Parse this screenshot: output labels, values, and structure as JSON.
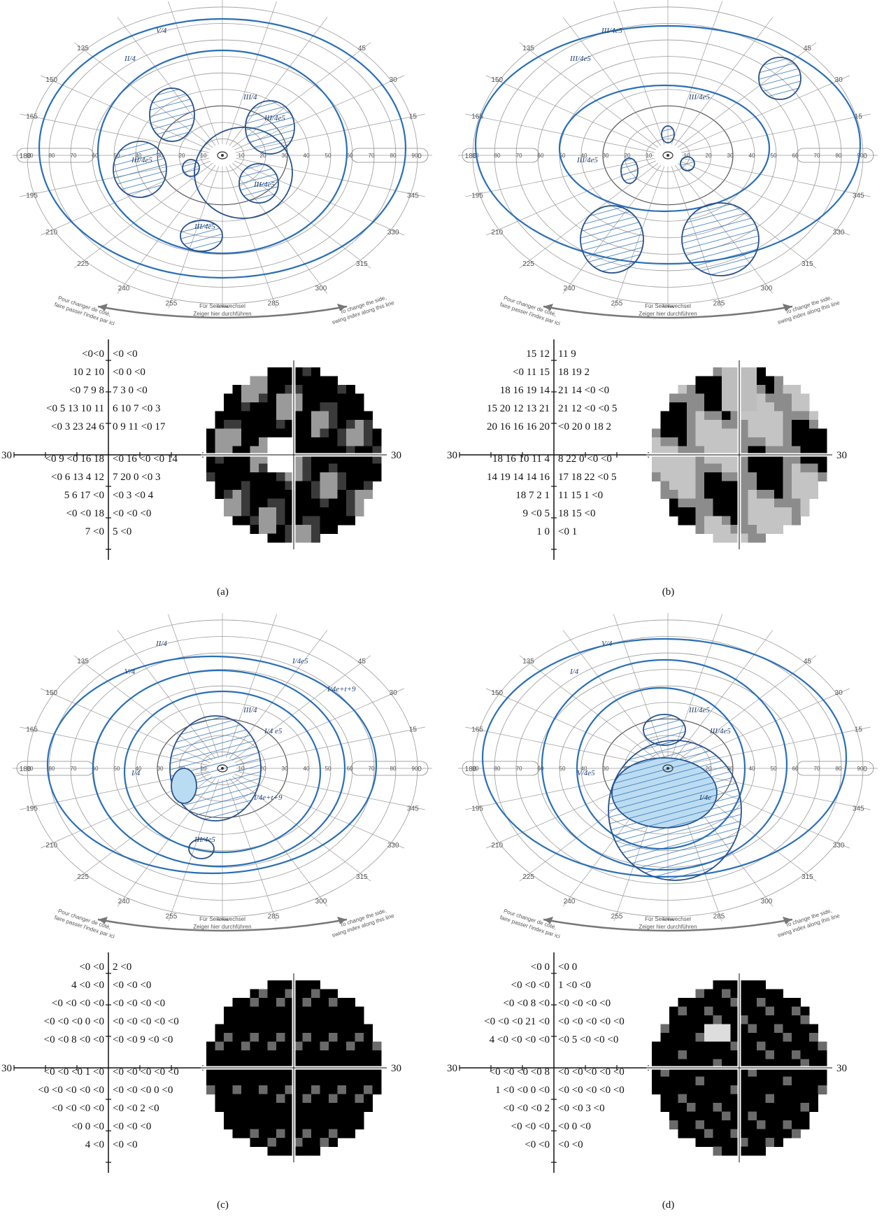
{
  "perimetry_labels": {
    "degrees": [
      "135",
      "150",
      "165",
      "180",
      "195",
      "210",
      "225",
      "240",
      "255",
      "270",
      "285",
      "300",
      "315",
      "330",
      "345",
      "0",
      "15",
      "30",
      "45"
    ],
    "eccentricity": [
      "10",
      "20",
      "30",
      "40",
      "50",
      "60",
      "70",
      "80",
      "90"
    ],
    "bottom_center": [
      "Für Seitenwechsel",
      "Zeiger hier durchführen"
    ],
    "bottom_left": [
      "Pour changer de côté,",
      "faire passer l'index par ici"
    ],
    "bottom_right": [
      "To change the side,",
      "swing index along this line"
    ]
  },
  "panels": [
    {
      "caption": "(a)",
      "isopters": [
        "V/4",
        "II/4",
        "III/4",
        "III/4e5",
        "III/4e5",
        "III/4e5",
        "III/4e5"
      ],
      "grid_left_label": "30",
      "grid_right_label": "30",
      "grid_rows": [
        [
          "<0<0",
          "<0 <0"
        ],
        [
          "10  2 10",
          "<0  0 <0"
        ],
        [
          "<0  7   9   8",
          "7   3   0 <0"
        ],
        [
          "<0  5  13  10 11",
          "6  10  7 <0  3"
        ],
        [
          "<0  3  23  24  6",
          "0   9  11 <0 17"
        ],
        [
          "<0  9 <0  16 18",
          "<0 16 <0 <0 14"
        ],
        [
          "<0  6  13   4 12",
          "7  20  0 <0  3"
        ],
        [
          "5   6  17 <0",
          "<0  3 <0  4"
        ],
        [
          "<0 <0 18",
          "<0 <0 <0"
        ],
        [
          "7 <0",
          "5 <0"
        ]
      ]
    },
    {
      "caption": "(b)",
      "isopters": [
        "III/4e5",
        "III/4e5",
        "III/4e5",
        "III/4e5"
      ],
      "grid_left_label": "30",
      "grid_right_label": "30",
      "grid_rows": [
        [
          "15 12",
          "11  9"
        ],
        [
          "<0 11 15",
          "18 19  2"
        ],
        [
          "18 16 19 14",
          "21 14 <0 <0"
        ],
        [
          "15 20 12 13 21",
          "21 12 <0 <0  5"
        ],
        [
          "20 16 16 16 20",
          "<0 20  0  18  2"
        ],
        [
          "18 16 10 11  4",
          "8  22  0  <0 <0"
        ],
        [
          "14 19 14 14 16",
          "17 18 22 <0  5"
        ],
        [
          "18  7   2   1",
          "11 15  1 <0"
        ],
        [
          "9 <0  5",
          "18 15 <0"
        ],
        [
          "1   0",
          "<0  1"
        ]
      ]
    },
    {
      "caption": "(c)",
      "isopters": [
        "II/4",
        "V/4",
        "III/4",
        "I/4",
        "I/4 e5",
        "I/4e+t+9",
        "III/4e5",
        "I/4e5",
        "I/4e+t+9"
      ],
      "grid_left_label": "30",
      "grid_right_label": "30",
      "grid_rows": [
        [
          "<0 <0",
          "2 <0"
        ],
        [
          "4 <0 <0",
          "<0 <0 <0"
        ],
        [
          "<0 <0 <0 <0",
          "<0 <0 <0 <0"
        ],
        [
          "<0 <0 <0  0 <0",
          "<0 <0 <0 <0 <0"
        ],
        [
          "<0 <0  8 <0 <0",
          "<0 <0  9 <0 <0"
        ],
        [
          "<0 <0 <0  1 <0",
          "<0 <0 <0 <0 <0"
        ],
        [
          "<0 <0 <0 <0 <0",
          "<0 <0 <0  0 <0"
        ],
        [
          "<0 <0 <0 <0",
          "<0 <0  2 <0"
        ],
        [
          "<0  0 <0",
          "<0 <0 <0"
        ],
        [
          "4 <0",
          "<0 <0"
        ]
      ]
    },
    {
      "caption": "(d)",
      "isopters": [
        "V/4",
        "I/4",
        "III/4e5",
        "V/4e5",
        "III/4e5",
        "I/4e"
      ],
      "grid_left_label": "30",
      "grid_right_label": "30",
      "grid_rows": [
        [
          "<0  0",
          "<0  0"
        ],
        [
          "<0 <0 <0",
          "1 <0 <0"
        ],
        [
          "<0 <0  8 <0",
          "<0 <0 <0 <0"
        ],
        [
          "<0 <0 <0 21 <0",
          "<0 <0 <0 <0 <0"
        ],
        [
          "4 <0 <0 <0 <0",
          "<0  5 <0 <0 <0"
        ],
        [
          "<0 <0 <0 <0  8",
          "<0 <0 <0 <0 <0"
        ],
        [
          "1 <0 <0  0 <0",
          "<0 <0 <0 <0 <0"
        ],
        [
          "<0 <0 <0  2",
          "<0 <0  3 <0"
        ],
        [
          "<0 <0 <0",
          "<0  0 <0"
        ],
        [
          "<0 <0",
          "<0 <0"
        ]
      ]
    }
  ]
}
